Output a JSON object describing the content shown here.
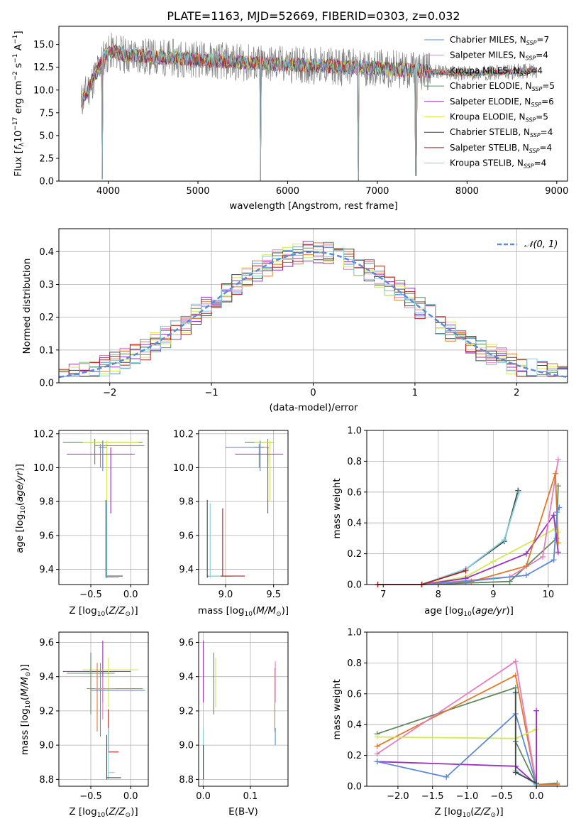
{
  "figure": {
    "title": "PLATE=1163, MJD=52669, FIBERID=0303, z=0.032"
  },
  "colors": {
    "chabrier_miles": "#5b8bd8",
    "salpeter_miles": "#e67fbf",
    "kroupa_miles": "#e07a2a",
    "chabrier_elodie": "#5f8a5f",
    "salpeter_elodie": "#9b2fc0",
    "kroupa_elodie": "#d4ea50",
    "chabrier_stelib": "#444444",
    "salpeter_stelib": "#b21e1e",
    "kroupa_stelib": "#7fd0dc",
    "data": "#808080",
    "normal": "#5b8bd8"
  },
  "chart_data": [
    {
      "id": "spectrum",
      "type": "line",
      "xlabel": "wavelength [Angstrom, rest frame]",
      "ylabel": "Flux [f_λ 10^-17 erg cm^-2 s^-1 A^-1]",
      "xlim": [
        3450,
        9120
      ],
      "ylim": [
        0,
        17
      ],
      "xticks": [
        "4000",
        "5000",
        "6000",
        "7000",
        "8000",
        "9000"
      ],
      "yticks": [
        "0.0",
        "2.5",
        "5.0",
        "7.5",
        "10.0",
        "12.5",
        "15.0"
      ],
      "grid": false,
      "legend": "top-right",
      "legend_entries": [
        {
          "name": "Chabrier MILES, N",
          "sub": "SSP",
          "n": "=7"
        },
        {
          "name": "Salpeter MILES, N",
          "sub": "SSP",
          "n": "=4"
        },
        {
          "name": "Kroupa MILES, N",
          "sub": "SSP",
          "n": "=4"
        },
        {
          "name": "Chabrier ELODIE, N",
          "sub": "SSP",
          "n": "=5"
        },
        {
          "name": "Salpeter ELODIE, N",
          "sub": "SSP",
          "n": "=6"
        },
        {
          "name": "Kroupa ELODIE, N",
          "sub": "SSP",
          "n": "=5"
        },
        {
          "name": "Chabrier STELIB, N",
          "sub": "SSP",
          "n": "=4"
        },
        {
          "name": "Salpeter STELIB, N",
          "sub": "SSP",
          "n": "=4"
        },
        {
          "name": "Kroupa STELIB, N",
          "sub": "SSP",
          "n": "=4"
        }
      ],
      "continuum_x": [
        3700,
        3800,
        3950,
        4050,
        4200,
        4500,
        5000,
        5500,
        6000,
        6500,
        7000,
        7500,
        8000,
        8500,
        8800
      ],
      "continuum_y": [
        8.8,
        10.5,
        13.6,
        14.3,
        13.8,
        13.6,
        13.4,
        13.0,
        12.8,
        12.6,
        12.4,
        12.1,
        11.8,
        12.0,
        12.2
      ],
      "dips": [
        {
          "x": 3933,
          "y": 0.2
        },
        {
          "x": 5700,
          "y": 0.0
        },
        {
          "x": 6790,
          "y": 0.0
        },
        {
          "x": 7430,
          "y": 0.6
        }
      ]
    },
    {
      "id": "residual_hist",
      "type": "histogram",
      "xlabel": "(data-model)/error",
      "ylabel": "Normed distribution",
      "xlim": [
        -2.5,
        2.5
      ],
      "ylim": [
        0,
        0.47
      ],
      "xticks": [
        "−2",
        "−1",
        "0",
        "1",
        "2"
      ],
      "yticks": [
        "0.0",
        "0.1",
        "0.2",
        "0.3",
        "0.4"
      ],
      "grid": true,
      "legend": "top-right",
      "normal_label": "𝒩(0, 1)",
      "bin_width": 0.1
    },
    {
      "id": "age_vs_Z",
      "type": "scatter",
      "xlabel": "Z [log10(Z/Z⊙)]",
      "ylabel": "age [log10(age/yr)]",
      "xlim": [
        -0.9,
        0.22
      ],
      "ylim": [
        9.31,
        10.22
      ],
      "xticks": [
        "−0.5",
        "0.0"
      ],
      "yticks": [
        "9.4",
        "9.6",
        "9.8",
        "10.0",
        "10.2"
      ],
      "grid": true
    },
    {
      "id": "age_vs_mass",
      "type": "scatter",
      "xlabel": "mass [log10(M/M⊙)]",
      "ylabel": "",
      "xlim": [
        8.72,
        9.65
      ],
      "ylim": [
        9.31,
        10.22
      ],
      "xticks": [
        "9.0",
        "9.5"
      ],
      "yticks": [
        "9.4",
        "9.6",
        "9.8",
        "10.0",
        "10.2"
      ],
      "grid": true
    },
    {
      "id": "massweight_vs_age",
      "type": "line",
      "xlabel": "age [log10(age/yr)]",
      "ylabel": "mass weight",
      "xlim": [
        6.7,
        10.35
      ],
      "ylim": [
        0,
        1
      ],
      "xticks": [
        "7",
        "8",
        "9",
        "10"
      ],
      "yticks": [
        "0.0",
        "0.2",
        "0.4",
        "0.6",
        "0.8",
        "1.0"
      ],
      "grid": true
    },
    {
      "id": "mass_vs_Z",
      "type": "scatter",
      "xlabel": "Z [log10(Z/Z⊙)]",
      "ylabel": "mass [log10(M/M⊙)]",
      "xlim": [
        -0.9,
        0.22
      ],
      "ylim": [
        8.76,
        9.66
      ],
      "xticks": [
        "−0.5",
        "0.0"
      ],
      "yticks": [
        "8.8",
        "9.0",
        "9.2",
        "9.4",
        "9.6"
      ],
      "grid": true
    },
    {
      "id": "mass_vs_ebv",
      "type": "scatter",
      "xlabel": "E(B-V)",
      "ylabel": "",
      "xlim": [
        -0.01,
        0.18
      ],
      "ylim": [
        8.76,
        9.66
      ],
      "xticks": [
        "0.0",
        "0.1"
      ],
      "yticks": [
        "8.8",
        "9.0",
        "9.2",
        "9.4",
        "9.6"
      ],
      "grid": true
    },
    {
      "id": "massweight_vs_Z",
      "type": "line",
      "xlabel": "Z [log10(Z/Z⊙)]",
      "ylabel": "mass weight",
      "xlim": [
        -2.45,
        0.45
      ],
      "ylim": [
        0,
        1
      ],
      "xticks": [
        "−2.0",
        "−1.5",
        "−1.0",
        "−0.5",
        "0.0"
      ],
      "yticks": [
        "0.0",
        "0.2",
        "0.4",
        "0.6",
        "0.8",
        "1.0"
      ],
      "grid": true
    }
  ]
}
